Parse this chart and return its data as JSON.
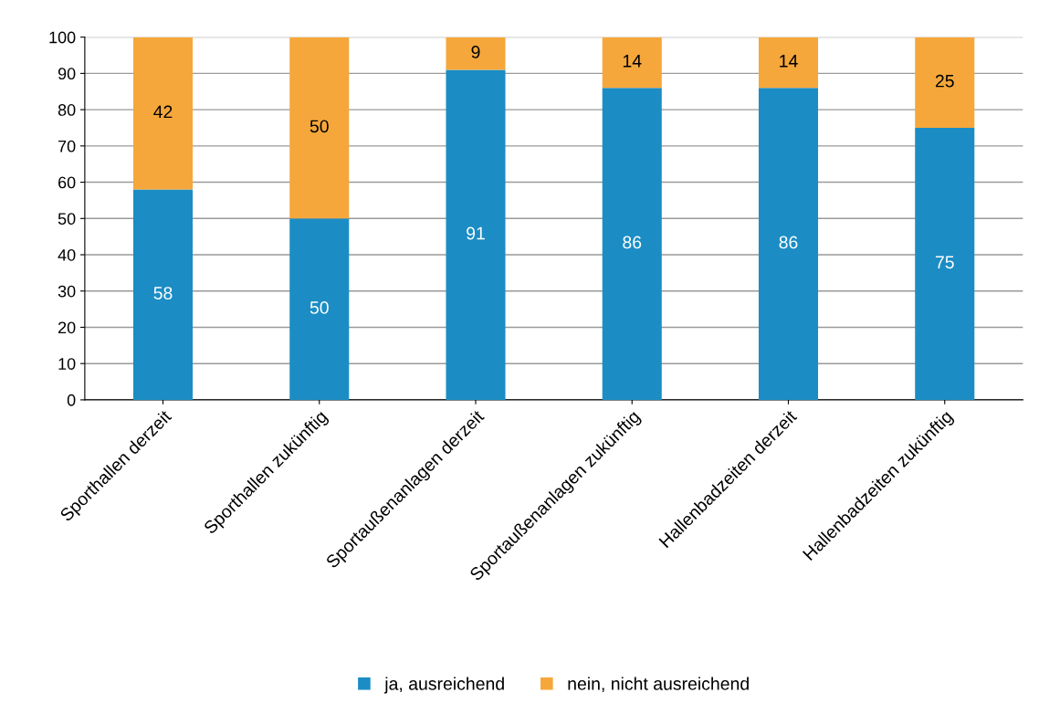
{
  "chart_data": {
    "type": "bar",
    "stacked": true,
    "categories": [
      "Sporthallen derzeit",
      "Sporthallen zukünftig",
      "Sportaußenanlagen derzeit",
      "Sportaußenanlagen zukünftig",
      "Hallenbadzeiten derzeit",
      "Hallenbadzeiten zukünftig"
    ],
    "series": [
      {
        "name": "ja, ausreichend",
        "color": "#1b8dc4",
        "values": [
          58,
          50,
          91,
          86,
          86,
          75
        ]
      },
      {
        "name": "nein, nicht ausreichend",
        "color": "#f5a73b",
        "values": [
          42,
          50,
          9,
          14,
          14,
          25
        ]
      }
    ],
    "ylim": [
      0,
      100
    ],
    "yticks": [
      0,
      10,
      20,
      30,
      40,
      50,
      60,
      70,
      80,
      90,
      100
    ],
    "grid": "y",
    "legend": "bottom",
    "data_labels": true
  }
}
